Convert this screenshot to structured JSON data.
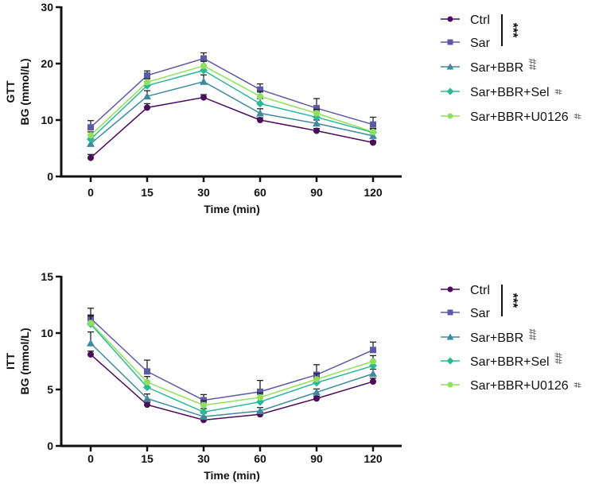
{
  "chart_data": [
    {
      "type": "line",
      "panel_label": "GTT",
      "ylabel": "BG (mmol/L)",
      "xlabel": "Time (min)",
      "categories": [
        "0",
        "15",
        "30",
        "60",
        "90",
        "120"
      ],
      "ylim": [
        0,
        30
      ],
      "yticks": [
        "0",
        "10",
        "20",
        "30"
      ],
      "legend_position": "right",
      "series": [
        {
          "name": "Ctrl",
          "color": "#4b0c5c",
          "marker": "circle",
          "values": [
            3.3,
            12.2,
            14.0,
            10.0,
            8.1,
            6.0
          ],
          "err": [
            0.6,
            0.7,
            0.5,
            0.4,
            0.4,
            0.3
          ],
          "sig": ""
        },
        {
          "name": "Sar",
          "color": "#5b5aa6",
          "marker": "square",
          "values": [
            8.7,
            17.9,
            20.9,
            15.4,
            12.1,
            9.2
          ],
          "err": [
            1.2,
            0.8,
            1.0,
            1.0,
            1.7,
            1.3
          ],
          "sig": ""
        },
        {
          "name": "Sar+BBR",
          "color": "#3f8a9e",
          "marker": "triangle",
          "values": [
            5.8,
            14.2,
            16.8,
            11.2,
            9.4,
            7.2
          ],
          "err": [
            0.7,
            1.0,
            1.2,
            0.8,
            0.6,
            0.5
          ],
          "sig": "##"
        },
        {
          "name": "Sar+BBR+Sel",
          "color": "#2bb896",
          "marker": "diamond",
          "values": [
            6.6,
            16.1,
            18.8,
            12.9,
            10.5,
            7.8
          ],
          "err": [
            0.7,
            0.7,
            0.8,
            0.9,
            0.8,
            0.6
          ],
          "sig": "#"
        },
        {
          "name": "Sar+BBR+U0126",
          "color": "#8fe05a",
          "marker": "circle",
          "values": [
            7.3,
            16.7,
            19.6,
            14.2,
            11.2,
            7.9
          ],
          "err": [
            0.6,
            0.6,
            0.8,
            0.9,
            0.7,
            0.6
          ],
          "sig": "#"
        }
      ],
      "annotation": "***"
    },
    {
      "type": "line",
      "panel_label": "ITT",
      "ylabel": "BG (mmol/L)",
      "xlabel": "Time (min)",
      "categories": [
        "0",
        "15",
        "30",
        "60",
        "90",
        "120"
      ],
      "ylim": [
        0,
        15
      ],
      "yticks": [
        "0",
        "5",
        "10",
        "15"
      ],
      "legend_position": "right",
      "series": [
        {
          "name": "Ctrl",
          "color": "#4b0c5c",
          "marker": "circle",
          "values": [
            8.1,
            3.65,
            2.3,
            2.8,
            4.2,
            5.7
          ],
          "err": [
            0.3,
            0.2,
            0.2,
            0.2,
            0.2,
            0.3
          ],
          "sig": ""
        },
        {
          "name": "Sar",
          "color": "#5b5aa6",
          "marker": "square",
          "values": [
            11.3,
            6.6,
            4.05,
            4.8,
            6.3,
            8.5
          ],
          "err": [
            0.9,
            1.0,
            0.5,
            1.0,
            0.9,
            0.7
          ],
          "sig": ""
        },
        {
          "name": "Sar+BBR",
          "color": "#3f8a9e",
          "marker": "triangle",
          "values": [
            9.1,
            4.2,
            2.6,
            3.1,
            4.75,
            6.4
          ],
          "err": [
            1.0,
            0.4,
            0.3,
            0.3,
            0.3,
            0.4
          ],
          "sig": "##"
        },
        {
          "name": "Sar+BBR+Sel",
          "color": "#2bb896",
          "marker": "diamond",
          "values": [
            10.8,
            5.2,
            3.0,
            3.9,
            5.6,
            7.1
          ],
          "err": [
            0.8,
            0.5,
            0.3,
            0.4,
            0.4,
            0.4
          ],
          "sig": "##"
        },
        {
          "name": "Sar+BBR+U0126",
          "color": "#8fe05a",
          "marker": "circle",
          "values": [
            10.9,
            5.65,
            3.6,
            4.3,
            5.9,
            7.5
          ],
          "err": [
            0.6,
            0.5,
            0.4,
            0.4,
            0.5,
            0.5
          ],
          "sig": "#"
        }
      ],
      "annotation": "***"
    }
  ]
}
